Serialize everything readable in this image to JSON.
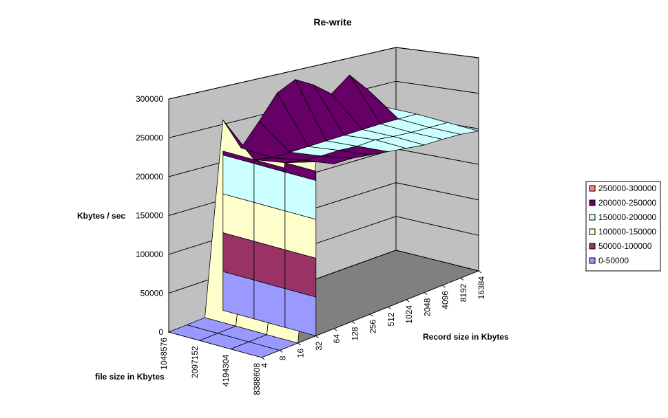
{
  "chart_data": {
    "type": "surface",
    "title": "Re-write",
    "zlabel": "Kbytes / sec",
    "xlabel": "Record size in Kbytes",
    "ylabel": "file size in Kbytes",
    "zlim": [
      0,
      300000
    ],
    "z_ticks": [
      "0",
      "50000",
      "100000",
      "150000",
      "200000",
      "250000",
      "300000"
    ],
    "record_sizes": [
      "4",
      "8",
      "16",
      "32",
      "64",
      "128",
      "256",
      "512",
      "1024",
      "2048",
      "4096",
      "8192",
      "16384"
    ],
    "file_sizes": [
      "1048576",
      "2097152",
      "4194304",
      "8388608"
    ],
    "legend_position": "right",
    "bands": [
      {
        "label": "250000-300000",
        "min": 250000,
        "max": 300000,
        "color": "#FF8080"
      },
      {
        "label": "200000-250000",
        "min": 200000,
        "max": 250000,
        "color": "#660066"
      },
      {
        "label": "150000-200000",
        "min": 150000,
        "max": 200000,
        "color": "#CCFFFF"
      },
      {
        "label": "100000-150000",
        "min": 100000,
        "max": 150000,
        "color": "#FFFFCC"
      },
      {
        "label": "50000-100000",
        "min": 50000,
        "max": 100000,
        "color": "#993366"
      },
      {
        "label": "0-50000",
        "min": 0,
        "max": 50000,
        "color": "#9999FF"
      }
    ],
    "values": [
      [
        0,
        0,
        0,
        224000,
        212000,
        210000,
        205000,
        200000,
        195000,
        190000,
        188000,
        185000,
        180000
      ],
      [
        0,
        0,
        0,
        212000,
        206000,
        202000,
        200000,
        196000,
        195000,
        190000,
        186000,
        183000,
        180000
      ],
      [
        0,
        0,
        0,
        205000,
        198000,
        196000,
        194000,
        192000,
        190000,
        188000,
        186000,
        183000,
        180000
      ],
      [
        0,
        0,
        0,
        245000,
        200000,
        225000,
        252000,
        260000,
        244000,
        223000,
        238000,
        210000,
        178000
      ]
    ]
  }
}
